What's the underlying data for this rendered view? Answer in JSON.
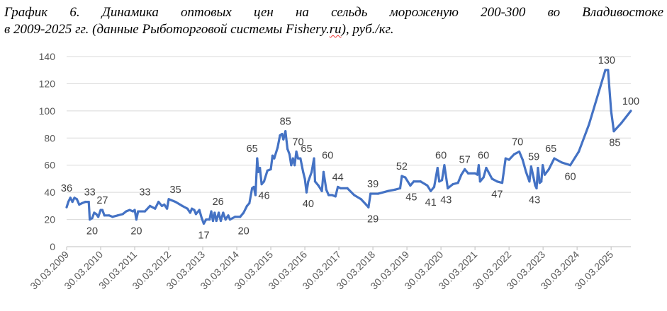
{
  "caption": {
    "line1": "График 6. Динамика оптовых цен на сельдь мороженую 200-300 во Владивостоке",
    "line2_a": "в 2009-2025 гг. (данные Рыботорговой системы ",
    "line2_b": "Fishery.ru",
    "line2_c": "), руб./кг."
  },
  "colors": {
    "line": "#4472C4",
    "axis": "#BFBFBF",
    "grid": "#D9D9D9",
    "text": "#595959"
  },
  "chart_data": {
    "type": "line",
    "title": "",
    "xlabel": "",
    "ylabel": "",
    "ylim": [
      0,
      140
    ],
    "yticks": [
      0,
      20,
      40,
      60,
      80,
      100,
      120,
      140
    ],
    "xlim": [
      2009.25,
      2025.83
    ],
    "xticks": [
      {
        "v": 2009.25,
        "label": "30.03.2009"
      },
      {
        "v": 2010.25,
        "label": "30.03.2010"
      },
      {
        "v": 2011.25,
        "label": "30.03.2011"
      },
      {
        "v": 2012.25,
        "label": "30.03.2012"
      },
      {
        "v": 2013.25,
        "label": "30.03.2013"
      },
      {
        "v": 2014.25,
        "label": "30.03.2014"
      },
      {
        "v": 2015.25,
        "label": "30.03.2015"
      },
      {
        "v": 2016.25,
        "label": "30.03.2016"
      },
      {
        "v": 2017.25,
        "label": "30.03.2017"
      },
      {
        "v": 2018.25,
        "label": "30.03.2018"
      },
      {
        "v": 2019.25,
        "label": "30.03.2019"
      },
      {
        "v": 2020.25,
        "label": "30.03.2020"
      },
      {
        "v": 2021.25,
        "label": "30.03.2021"
      },
      {
        "v": 2022.25,
        "label": "30.03.2022"
      },
      {
        "v": 2023.25,
        "label": "30.03.2023"
      },
      {
        "v": 2024.25,
        "label": "30.03.2024"
      },
      {
        "v": 2025.25,
        "label": "30.03.2025"
      }
    ],
    "grid": "horizontal",
    "legend": "none",
    "series": [
      {
        "points": [
          [
            2009.25,
            29
          ],
          [
            2009.3,
            33
          ],
          [
            2009.36,
            36
          ],
          [
            2009.42,
            33
          ],
          [
            2009.48,
            36
          ],
          [
            2009.55,
            35
          ],
          [
            2009.62,
            31
          ],
          [
            2009.7,
            32
          ],
          [
            2009.8,
            33
          ],
          [
            2009.9,
            33
          ],
          [
            2009.93,
            20
          ],
          [
            2010.0,
            21
          ],
          [
            2010.06,
            25
          ],
          [
            2010.12,
            24
          ],
          [
            2010.18,
            22
          ],
          [
            2010.25,
            27
          ],
          [
            2010.3,
            27
          ],
          [
            2010.36,
            23
          ],
          [
            2010.5,
            23
          ],
          [
            2010.6,
            22
          ],
          [
            2010.75,
            23
          ],
          [
            2010.9,
            24
          ],
          [
            2011.0,
            26
          ],
          [
            2011.1,
            27
          ],
          [
            2011.2,
            26
          ],
          [
            2011.25,
            27
          ],
          [
            2011.3,
            20
          ],
          [
            2011.35,
            26
          ],
          [
            2011.55,
            26
          ],
          [
            2011.7,
            30
          ],
          [
            2011.85,
            28
          ],
          [
            2011.95,
            33
          ],
          [
            2012.05,
            30
          ],
          [
            2012.12,
            31
          ],
          [
            2012.2,
            28
          ],
          [
            2012.25,
            35
          ],
          [
            2012.45,
            33
          ],
          [
            2012.65,
            30
          ],
          [
            2012.8,
            28
          ],
          [
            2012.88,
            25
          ],
          [
            2012.93,
            28
          ],
          [
            2013.0,
            27
          ],
          [
            2013.05,
            24
          ],
          [
            2013.15,
            27
          ],
          [
            2013.22,
            21
          ],
          [
            2013.28,
            17
          ],
          [
            2013.35,
            20
          ],
          [
            2013.45,
            20
          ],
          [
            2013.5,
            26
          ],
          [
            2013.55,
            19
          ],
          [
            2013.6,
            25
          ],
          [
            2013.65,
            19
          ],
          [
            2013.72,
            25
          ],
          [
            2013.78,
            19
          ],
          [
            2013.85,
            25
          ],
          [
            2013.92,
            20
          ],
          [
            2014.0,
            23
          ],
          [
            2014.05,
            20
          ],
          [
            2014.2,
            22
          ],
          [
            2014.35,
            22
          ],
          [
            2014.45,
            25
          ],
          [
            2014.55,
            30
          ],
          [
            2014.62,
            32
          ],
          [
            2014.7,
            43
          ],
          [
            2014.75,
            44
          ],
          [
            2014.8,
            38
          ],
          [
            2014.85,
            65
          ],
          [
            2014.88,
            55
          ],
          [
            2014.93,
            58
          ],
          [
            2014.98,
            46
          ],
          [
            2015.05,
            48
          ],
          [
            2015.15,
            56
          ],
          [
            2015.25,
            57
          ],
          [
            2015.3,
            67
          ],
          [
            2015.35,
            65
          ],
          [
            2015.45,
            73
          ],
          [
            2015.52,
            82
          ],
          [
            2015.58,
            83
          ],
          [
            2015.62,
            79
          ],
          [
            2015.68,
            85
          ],
          [
            2015.74,
            72
          ],
          [
            2015.8,
            68
          ],
          [
            2015.85,
            60
          ],
          [
            2015.9,
            65
          ],
          [
            2015.95,
            60
          ],
          [
            2016.0,
            70
          ],
          [
            2016.05,
            65
          ],
          [
            2016.12,
            65
          ],
          [
            2016.2,
            55
          ],
          [
            2016.25,
            50
          ],
          [
            2016.3,
            40
          ],
          [
            2016.35,
            48
          ],
          [
            2016.45,
            55
          ],
          [
            2016.52,
            65
          ],
          [
            2016.55,
            48
          ],
          [
            2016.65,
            45
          ],
          [
            2016.75,
            41
          ],
          [
            2016.8,
            55
          ],
          [
            2016.88,
            42
          ],
          [
            2016.95,
            38
          ],
          [
            2017.05,
            38
          ],
          [
            2017.15,
            37
          ],
          [
            2017.22,
            44
          ],
          [
            2017.3,
            43
          ],
          [
            2017.5,
            43
          ],
          [
            2017.7,
            38
          ],
          [
            2017.9,
            35
          ],
          [
            2018.05,
            31
          ],
          [
            2018.12,
            29
          ],
          [
            2018.18,
            39
          ],
          [
            2018.4,
            39
          ],
          [
            2018.7,
            41
          ],
          [
            2018.9,
            42
          ],
          [
            2019.05,
            43
          ],
          [
            2019.1,
            52
          ],
          [
            2019.2,
            51
          ],
          [
            2019.35,
            45
          ],
          [
            2019.45,
            48
          ],
          [
            2019.65,
            48
          ],
          [
            2019.85,
            45
          ],
          [
            2019.95,
            41
          ],
          [
            2020.05,
            44
          ],
          [
            2020.15,
            58
          ],
          [
            2020.2,
            48
          ],
          [
            2020.28,
            49
          ],
          [
            2020.35,
            60
          ],
          [
            2020.45,
            43
          ],
          [
            2020.6,
            46
          ],
          [
            2020.75,
            47
          ],
          [
            2020.85,
            53
          ],
          [
            2020.95,
            57
          ],
          [
            2021.05,
            54
          ],
          [
            2021.25,
            54
          ],
          [
            2021.32,
            53
          ],
          [
            2021.36,
            60
          ],
          [
            2021.4,
            48
          ],
          [
            2021.5,
            51
          ],
          [
            2021.58,
            58
          ],
          [
            2021.75,
            50
          ],
          [
            2021.9,
            48
          ],
          [
            2022.05,
            47
          ],
          [
            2022.15,
            65
          ],
          [
            2022.25,
            64
          ],
          [
            2022.4,
            68
          ],
          [
            2022.55,
            70
          ],
          [
            2022.65,
            64
          ],
          [
            2022.75,
            55
          ],
          [
            2022.85,
            48
          ],
          [
            2022.9,
            59
          ],
          [
            2022.97,
            51
          ],
          [
            2023.02,
            45
          ],
          [
            2023.06,
            43
          ],
          [
            2023.1,
            58
          ],
          [
            2023.15,
            47
          ],
          [
            2023.2,
            48
          ],
          [
            2023.24,
            60
          ],
          [
            2023.3,
            53
          ],
          [
            2023.42,
            57
          ],
          [
            2023.58,
            65
          ],
          [
            2023.8,
            62
          ],
          [
            2024.05,
            60
          ],
          [
            2024.3,
            70
          ],
          [
            2024.6,
            90
          ],
          [
            2024.9,
            115
          ],
          [
            2025.08,
            130
          ],
          [
            2025.16,
            130
          ],
          [
            2025.25,
            100
          ],
          [
            2025.33,
            85
          ],
          [
            2025.55,
            91
          ],
          [
            2025.83,
            100
          ]
        ]
      }
    ],
    "data_labels": [
      {
        "text": "36",
        "x": 2009.25,
        "y": 36,
        "pos": "above"
      },
      {
        "text": "33",
        "x": 2009.93,
        "y": 33,
        "pos": "above"
      },
      {
        "text": "27",
        "x": 2010.3,
        "y": 27,
        "pos": "above"
      },
      {
        "text": "20",
        "x": 2010.0,
        "y": 20,
        "pos": "below"
      },
      {
        "text": "33",
        "x": 2011.55,
        "y": 33,
        "pos": "above"
      },
      {
        "text": "20",
        "x": 2011.3,
        "y": 20,
        "pos": "below"
      },
      {
        "text": "35",
        "x": 2012.45,
        "y": 35,
        "pos": "above"
      },
      {
        "text": "26",
        "x": 2013.7,
        "y": 26,
        "pos": "above"
      },
      {
        "text": "17",
        "x": 2013.28,
        "y": 17,
        "pos": "below"
      },
      {
        "text": "20",
        "x": 2014.45,
        "y": 20,
        "pos": "below"
      },
      {
        "text": "65",
        "x": 2014.7,
        "y": 65,
        "pos": "above"
      },
      {
        "text": "46",
        "x": 2015.05,
        "y": 46,
        "pos": "below"
      },
      {
        "text": "85",
        "x": 2015.68,
        "y": 85,
        "pos": "above"
      },
      {
        "text": "70",
        "x": 2016.05,
        "y": 70,
        "pos": "above"
      },
      {
        "text": "65",
        "x": 2016.3,
        "y": 65,
        "pos": "above"
      },
      {
        "text": "60",
        "x": 2016.92,
        "y": 60,
        "pos": "above"
      },
      {
        "text": "40",
        "x": 2016.35,
        "y": 40,
        "pos": "below"
      },
      {
        "text": "44",
        "x": 2017.22,
        "y": 44,
        "pos": "above"
      },
      {
        "text": "39",
        "x": 2018.25,
        "y": 39,
        "pos": "above"
      },
      {
        "text": "29",
        "x": 2018.25,
        "y": 29,
        "pos": "below"
      },
      {
        "text": "52",
        "x": 2019.1,
        "y": 52,
        "pos": "above"
      },
      {
        "text": "45",
        "x": 2019.38,
        "y": 45,
        "pos": "below"
      },
      {
        "text": "60",
        "x": 2020.25,
        "y": 60,
        "pos": "above"
      },
      {
        "text": "41",
        "x": 2019.95,
        "y": 41,
        "pos": "below"
      },
      {
        "text": "43",
        "x": 2020.4,
        "y": 43,
        "pos": "below"
      },
      {
        "text": "57",
        "x": 2020.95,
        "y": 57,
        "pos": "above"
      },
      {
        "text": "60",
        "x": 2021.5,
        "y": 60,
        "pos": "above"
      },
      {
        "text": "47",
        "x": 2021.9,
        "y": 47,
        "pos": "below"
      },
      {
        "text": "70",
        "x": 2022.5,
        "y": 70,
        "pos": "above"
      },
      {
        "text": "59",
        "x": 2022.98,
        "y": 59,
        "pos": "above"
      },
      {
        "text": "43",
        "x": 2023.0,
        "y": 43,
        "pos": "below"
      },
      {
        "text": "65",
        "x": 2023.48,
        "y": 65,
        "pos": "above"
      },
      {
        "text": "60",
        "x": 2024.05,
        "y": 60,
        "pos": "below"
      },
      {
        "text": "130",
        "x": 2025.12,
        "y": 130,
        "pos": "above"
      },
      {
        "text": "85",
        "x": 2025.36,
        "y": 85,
        "pos": "below"
      },
      {
        "text": "100",
        "x": 2025.83,
        "y": 100,
        "pos": "above"
      }
    ]
  }
}
